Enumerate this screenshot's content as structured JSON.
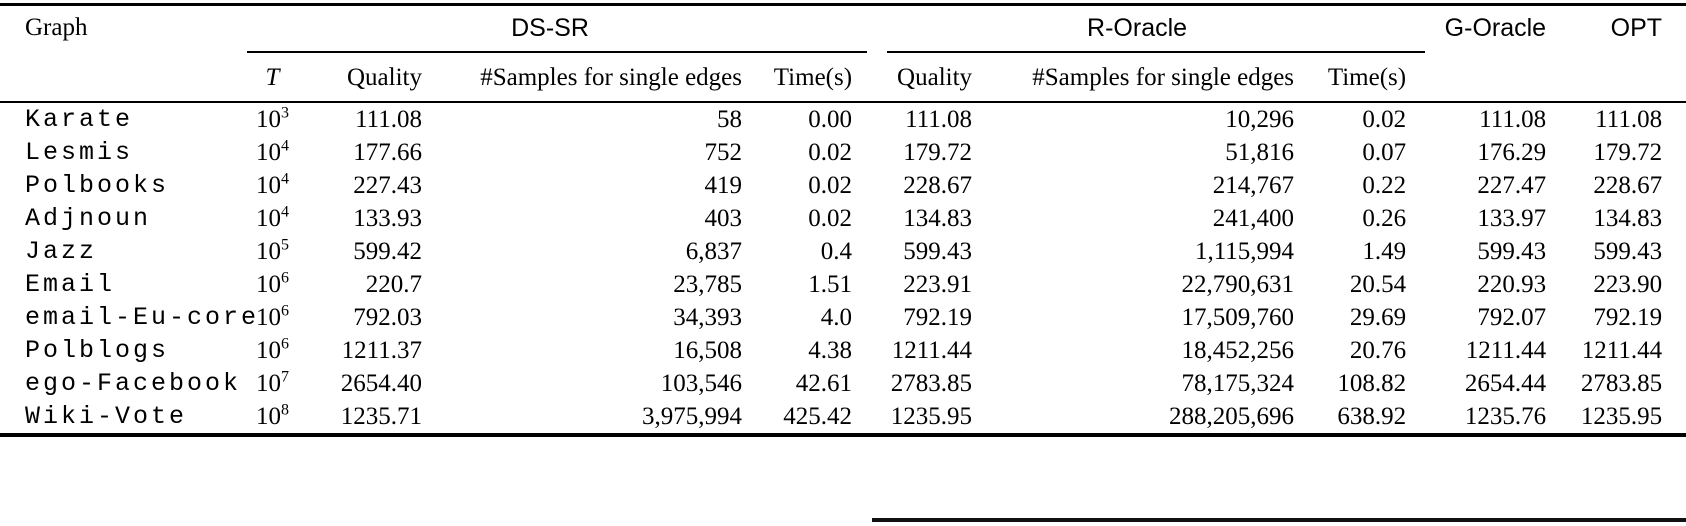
{
  "colors": {
    "text": "#000000",
    "background": "#ffffff",
    "rule": "#000000"
  },
  "table": {
    "headers": {
      "graph": "Graph",
      "ds_sr": "DS-SR",
      "r_oracle": "R-Oracle",
      "g_oracle": "G-Oracle",
      "opt": "OPT"
    },
    "sub_headers": {
      "t": "T",
      "quality": "Quality",
      "samples": "#Samples for single edges",
      "time": "Time(s)"
    },
    "rows": [
      {
        "graph": "Karate",
        "t_base": "10",
        "t_exp": "3",
        "ds_quality": "111.08",
        "ds_samples": "58",
        "ds_time": "0.00",
        "r_quality": "111.08",
        "r_samples": "10,296",
        "r_time": "0.02",
        "g_oracle": "111.08",
        "opt": "111.08"
      },
      {
        "graph": "Lesmis",
        "t_base": "10",
        "t_exp": "4",
        "ds_quality": "177.66",
        "ds_samples": "752",
        "ds_time": "0.02",
        "r_quality": "179.72",
        "r_samples": "51,816",
        "r_time": "0.07",
        "g_oracle": "176.29",
        "opt": "179.72"
      },
      {
        "graph": "Polbooks",
        "t_base": "10",
        "t_exp": "4",
        "ds_quality": "227.43",
        "ds_samples": "419",
        "ds_time": "0.02",
        "r_quality": "228.67",
        "r_samples": "214,767",
        "r_time": "0.22",
        "g_oracle": "227.47",
        "opt": "228.67"
      },
      {
        "graph": "Adjnoun",
        "t_base": "10",
        "t_exp": "4",
        "ds_quality": "133.93",
        "ds_samples": "403",
        "ds_time": "0.02",
        "r_quality": "134.83",
        "r_samples": "241,400",
        "r_time": "0.26",
        "g_oracle": "133.97",
        "opt": "134.83"
      },
      {
        "graph": "Jazz",
        "t_base": "10",
        "t_exp": "5",
        "ds_quality": "599.42",
        "ds_samples": "6,837",
        "ds_time": "0.4",
        "r_quality": "599.43",
        "r_samples": "1,115,994",
        "r_time": "1.49",
        "g_oracle": "599.43",
        "opt": "599.43"
      },
      {
        "graph": "Email",
        "t_base": "10",
        "t_exp": "6",
        "ds_quality": "220.7",
        "ds_samples": "23,785",
        "ds_time": "1.51",
        "r_quality": "223.91",
        "r_samples": "22,790,631",
        "r_time": "20.54",
        "g_oracle": "220.93",
        "opt": "223.90"
      },
      {
        "graph": "email-Eu-core",
        "t_base": "10",
        "t_exp": "6",
        "ds_quality": "792.03",
        "ds_samples": "34,393",
        "ds_time": "4.0",
        "r_quality": "792.19",
        "r_samples": "17,509,760",
        "r_time": "29.69",
        "g_oracle": "792.07",
        "opt": "792.19"
      },
      {
        "graph": "Polblogs",
        "t_base": "10",
        "t_exp": "6",
        "ds_quality": "1211.37",
        "ds_samples": "16,508",
        "ds_time": "4.38",
        "r_quality": "1211.44",
        "r_samples": "18,452,256",
        "r_time": "20.76",
        "g_oracle": "1211.44",
        "opt": "1211.44"
      },
      {
        "graph": "ego-Facebook",
        "t_base": "10",
        "t_exp": "7",
        "ds_quality": "2654.40",
        "ds_samples": "103,546",
        "ds_time": "42.61",
        "r_quality": "2783.85",
        "r_samples": "78,175,324",
        "r_time": "108.82",
        "g_oracle": "2654.44",
        "opt": "2783.85"
      },
      {
        "graph": "Wiki-Vote",
        "t_base": "10",
        "t_exp": "8",
        "ds_quality": "1235.71",
        "ds_samples": "3,975,994",
        "ds_time": "425.42",
        "r_quality": "1235.95",
        "r_samples": "288,205,696",
        "r_time": "638.92",
        "g_oracle": "1235.76",
        "opt": "1235.95"
      }
    ]
  }
}
